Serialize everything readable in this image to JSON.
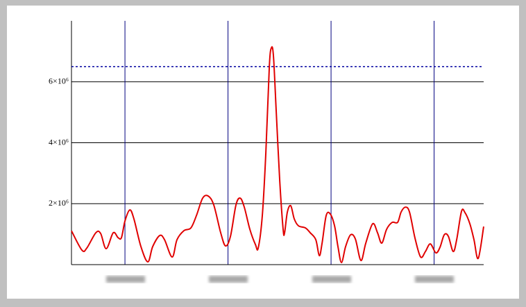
{
  "chart_data": {
    "type": "line",
    "x": [
      4.81,
      5.82,
      6.3,
      7.17,
      7.64,
      8.18,
      8.86,
      9.33,
      9.66,
      10,
      10.47,
      10.87,
      11.55,
      12.22,
      12.69,
      13.37,
      13.84,
      14.58,
      15.05,
      15.72,
      16.4,
      16.94,
      17.54,
      18.08,
      18.62,
      19.29,
      19.76,
      20.24,
      20.77,
      21.18,
      21.58,
      22.12,
      22.66,
      22.93,
      23.33,
      23.67,
      24.01,
      24.21,
      24.41,
      24.68,
      25.02,
      25.35,
      25.49,
      25.76,
      26.09,
      26.43,
      26.84,
      27.51,
      27.98,
      28.52,
      28.86,
      29.13,
      29.53,
      29.93,
      30.34,
      30.67,
      31.01,
      31.41,
      31.89,
      32.36,
      32.9,
      33.37,
      34.04,
      34.51,
      34.92,
      35.39,
      35.93,
      36.46,
      36.8,
      37.21,
      37.61,
      38.15,
      38.69,
      39.16,
      39.63,
      40.17,
      40.57,
      40.98,
      41.38,
      41.85,
      42.19,
      42.66,
      43.0,
      43.47,
      43.87,
      44.28,
      44.81
    ],
    "series": [
      {
        "color": "#e00000",
        "values": [
          1110000,
          477000,
          545000,
          1045000,
          1023000,
          523000,
          1045000,
          886000,
          886000,
          1432000,
          1795000,
          1500000,
          591000,
          91000,
          591000,
          955000,
          818000,
          250000,
          818000,
          1114000,
          1205000,
          1614000,
          2182000,
          2250000,
          1955000,
          1045000,
          614000,
          932000,
          1955000,
          2182000,
          1886000,
          1159000,
          659000,
          545000,
          1614000,
          3659000,
          6500000,
          7114000,
          6841000,
          5023000,
          2750000,
          1159000,
          1045000,
          1727000,
          1932000,
          1500000,
          1273000,
          1205000,
          1045000,
          818000,
          295000,
          705000,
          1614000,
          1659000,
          1273000,
          591000,
          68000,
          591000,
          977000,
          841000,
          136000,
          705000,
          1341000,
          1045000,
          705000,
          1159000,
          1386000,
          1386000,
          1727000,
          1886000,
          1727000,
          864000,
          250000,
          432000,
          682000,
          386000,
          568000,
          977000,
          932000,
          432000,
          818000,
          1750000,
          1705000,
          1341000,
          818000,
          205000,
          1250000
        ]
      }
    ],
    "reference_line": {
      "value": 6500000,
      "color": "#0000a0"
    },
    "xlim": [
      4.81,
      44.81
    ],
    "xticks": [
      10,
      20,
      30,
      40
    ],
    "ylim": [
      0,
      8000000
    ],
    "yticks": [
      {
        "value": 2000000,
        "label": "2×10⁶"
      },
      {
        "value": 4000000,
        "label": "4×10⁶"
      },
      {
        "value": 6000000,
        "label": "6×10⁶"
      }
    ],
    "grid": true
  }
}
